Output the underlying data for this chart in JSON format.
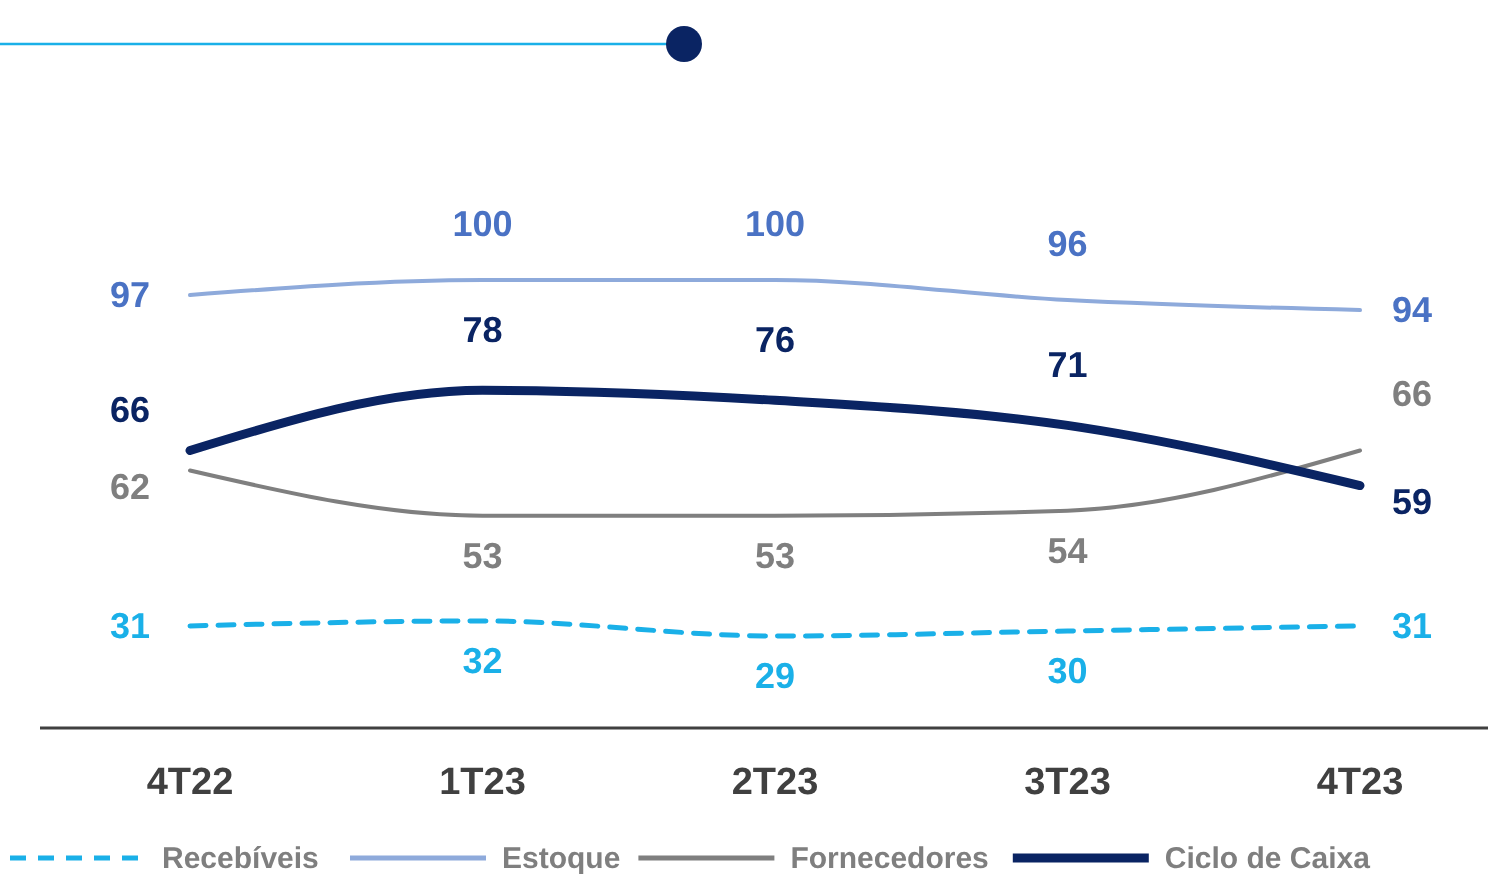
{
  "chart_data": {
    "type": "line",
    "categories": [
      "4T22",
      "1T23",
      "2T23",
      "3T23",
      "4T23"
    ],
    "data_labels": true,
    "legend": "bottom",
    "series": [
      {
        "name": "Recebíveis",
        "color": "#1ab0e8",
        "line_style": "dashed",
        "values": [
          31,
          32,
          29,
          30,
          31
        ]
      },
      {
        "name": "Estoque",
        "color": "#8eaadb",
        "values": [
          97,
          100,
          100,
          96,
          94
        ]
      },
      {
        "name": "Fornecedores",
        "color": "#7f7f7f",
        "values": [
          62,
          53,
          53,
          54,
          66
        ]
      },
      {
        "name": "Ciclo de Caixa",
        "color": "#0a2463",
        "values": [
          66,
          78,
          76,
          71,
          59
        ]
      }
    ]
  }
}
